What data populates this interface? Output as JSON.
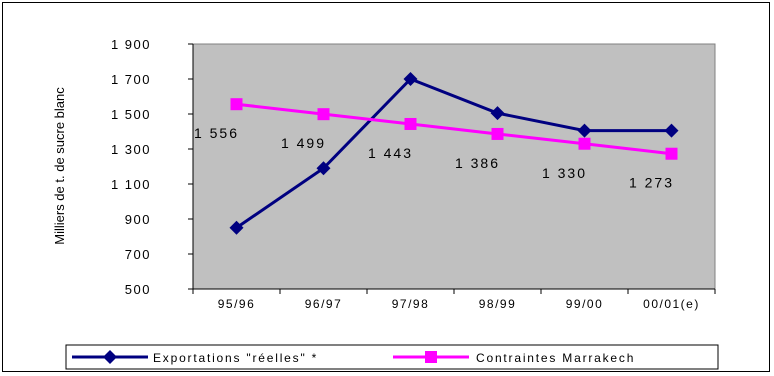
{
  "chart_data": {
    "type": "line",
    "categories": [
      "95/96",
      "96/97",
      "97/98",
      "98/99",
      "99/00",
      "00/01(e)"
    ],
    "ylabel": "Milliers de t. de sucre blanc",
    "ylim": [
      500,
      1900
    ],
    "yticks": [
      500,
      700,
      900,
      1100,
      1300,
      1500,
      1700,
      1900
    ],
    "ytick_labels": [
      "500",
      "700",
      "900",
      "1 100",
      "1 300",
      "1 500",
      "1 700",
      "1 900"
    ],
    "grid": false,
    "legend_position": "bottom",
    "series": [
      {
        "name": "Exportations \"réelles\" *",
        "values": [
          850,
          1190,
          1700,
          1505,
          1405,
          1405
        ],
        "color": "#000080",
        "marker": "diamond"
      },
      {
        "name": "Contraintes Marrakech",
        "values": [
          1556,
          1499,
          1443,
          1386,
          1330,
          1273
        ],
        "data_labels": [
          "1 556",
          "1 499",
          "1 443",
          "1 386",
          "1 330",
          "1 273"
        ],
        "color": "#FF00FF",
        "marker": "square"
      }
    ],
    "plot_background": "#C0C0C0"
  }
}
